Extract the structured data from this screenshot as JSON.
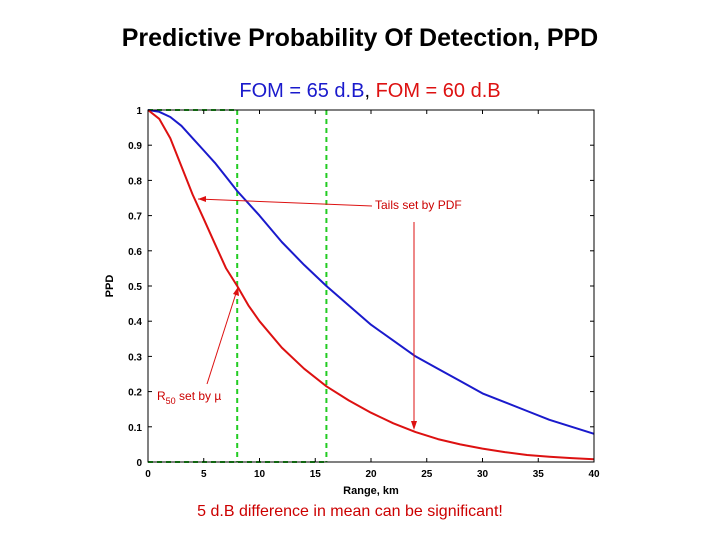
{
  "slide": {
    "title": "Predictive Probability Of Detection, PPD",
    "caption": "5 d.B difference in mean can be significant!"
  },
  "legend": {
    "fom65": "FOM = 65 d.B",
    "separator": ", ",
    "fom60": "FOM = 60 d.B"
  },
  "colors": {
    "blue": "#1a1acc",
    "red": "#dd1111",
    "green": "#22cc22"
  },
  "chart_data": {
    "type": "line",
    "title": "FOM = 65 d.B, FOM = 60 d.B",
    "xlabel": "Range, km",
    "ylabel": "PPD",
    "xlim": [
      0,
      40
    ],
    "ylim": [
      0,
      1
    ],
    "xticks": [
      0,
      5,
      10,
      15,
      20,
      25,
      30,
      35,
      40
    ],
    "yticks": [
      0,
      0.1,
      0.2,
      0.3,
      0.4,
      0.5,
      0.6,
      0.7,
      0.8,
      0.9,
      1
    ],
    "ytick_labels": [
      "0",
      "0.1",
      "0.2",
      "0.3",
      "0.4",
      "0.5",
      "0.6",
      "0.7",
      "0.8",
      "0.9",
      "1"
    ],
    "series": [
      {
        "name": "FOM = 65 d.B",
        "color": "#1a1acc",
        "x": [
          0,
          1,
          2,
          3,
          4,
          5,
          6,
          7,
          8,
          10,
          12,
          14,
          16,
          18,
          20,
          22,
          24,
          26,
          28,
          30,
          32,
          34,
          36,
          38,
          40
        ],
        "y": [
          1,
          0.995,
          0.98,
          0.955,
          0.92,
          0.885,
          0.85,
          0.81,
          0.77,
          0.7,
          0.625,
          0.56,
          0.5,
          0.445,
          0.39,
          0.345,
          0.3,
          0.265,
          0.23,
          0.195,
          0.17,
          0.145,
          0.12,
          0.1,
          0.08
        ]
      },
      {
        "name": "FOM = 60 d.B",
        "color": "#dd1111",
        "x": [
          0,
          1,
          2,
          3,
          4,
          5,
          6,
          7,
          8,
          9,
          10,
          12,
          14,
          16,
          18,
          20,
          22,
          24,
          26,
          28,
          30,
          32,
          34,
          36,
          38,
          40
        ],
        "y": [
          1,
          0.975,
          0.92,
          0.84,
          0.76,
          0.69,
          0.62,
          0.55,
          0.5,
          0.445,
          0.4,
          0.325,
          0.265,
          0.215,
          0.175,
          0.14,
          0.11,
          0.085,
          0.065,
          0.05,
          0.038,
          0.028,
          0.02,
          0.015,
          0.011,
          0.008
        ]
      }
    ],
    "reference_lines": [
      {
        "axis": "x",
        "value": 8,
        "color": "#22cc22",
        "style": "dashed"
      },
      {
        "axis": "x",
        "value": 16,
        "color": "#22cc22",
        "style": "dashed"
      },
      {
        "axis": "y",
        "value": 1,
        "x_range": [
          0,
          8
        ],
        "color": "#22cc22",
        "style": "dashed"
      },
      {
        "axis": "y",
        "value": 0,
        "x_range": [
          0,
          16
        ],
        "color": "#22cc22",
        "style": "dashed"
      }
    ],
    "annotations": [
      {
        "text": "Tails set by PDF",
        "color": "#dd1111"
      },
      {
        "text_main": "R",
        "subscript": "50",
        "text_rest": " set by µ",
        "color": "#dd1111"
      }
    ]
  }
}
